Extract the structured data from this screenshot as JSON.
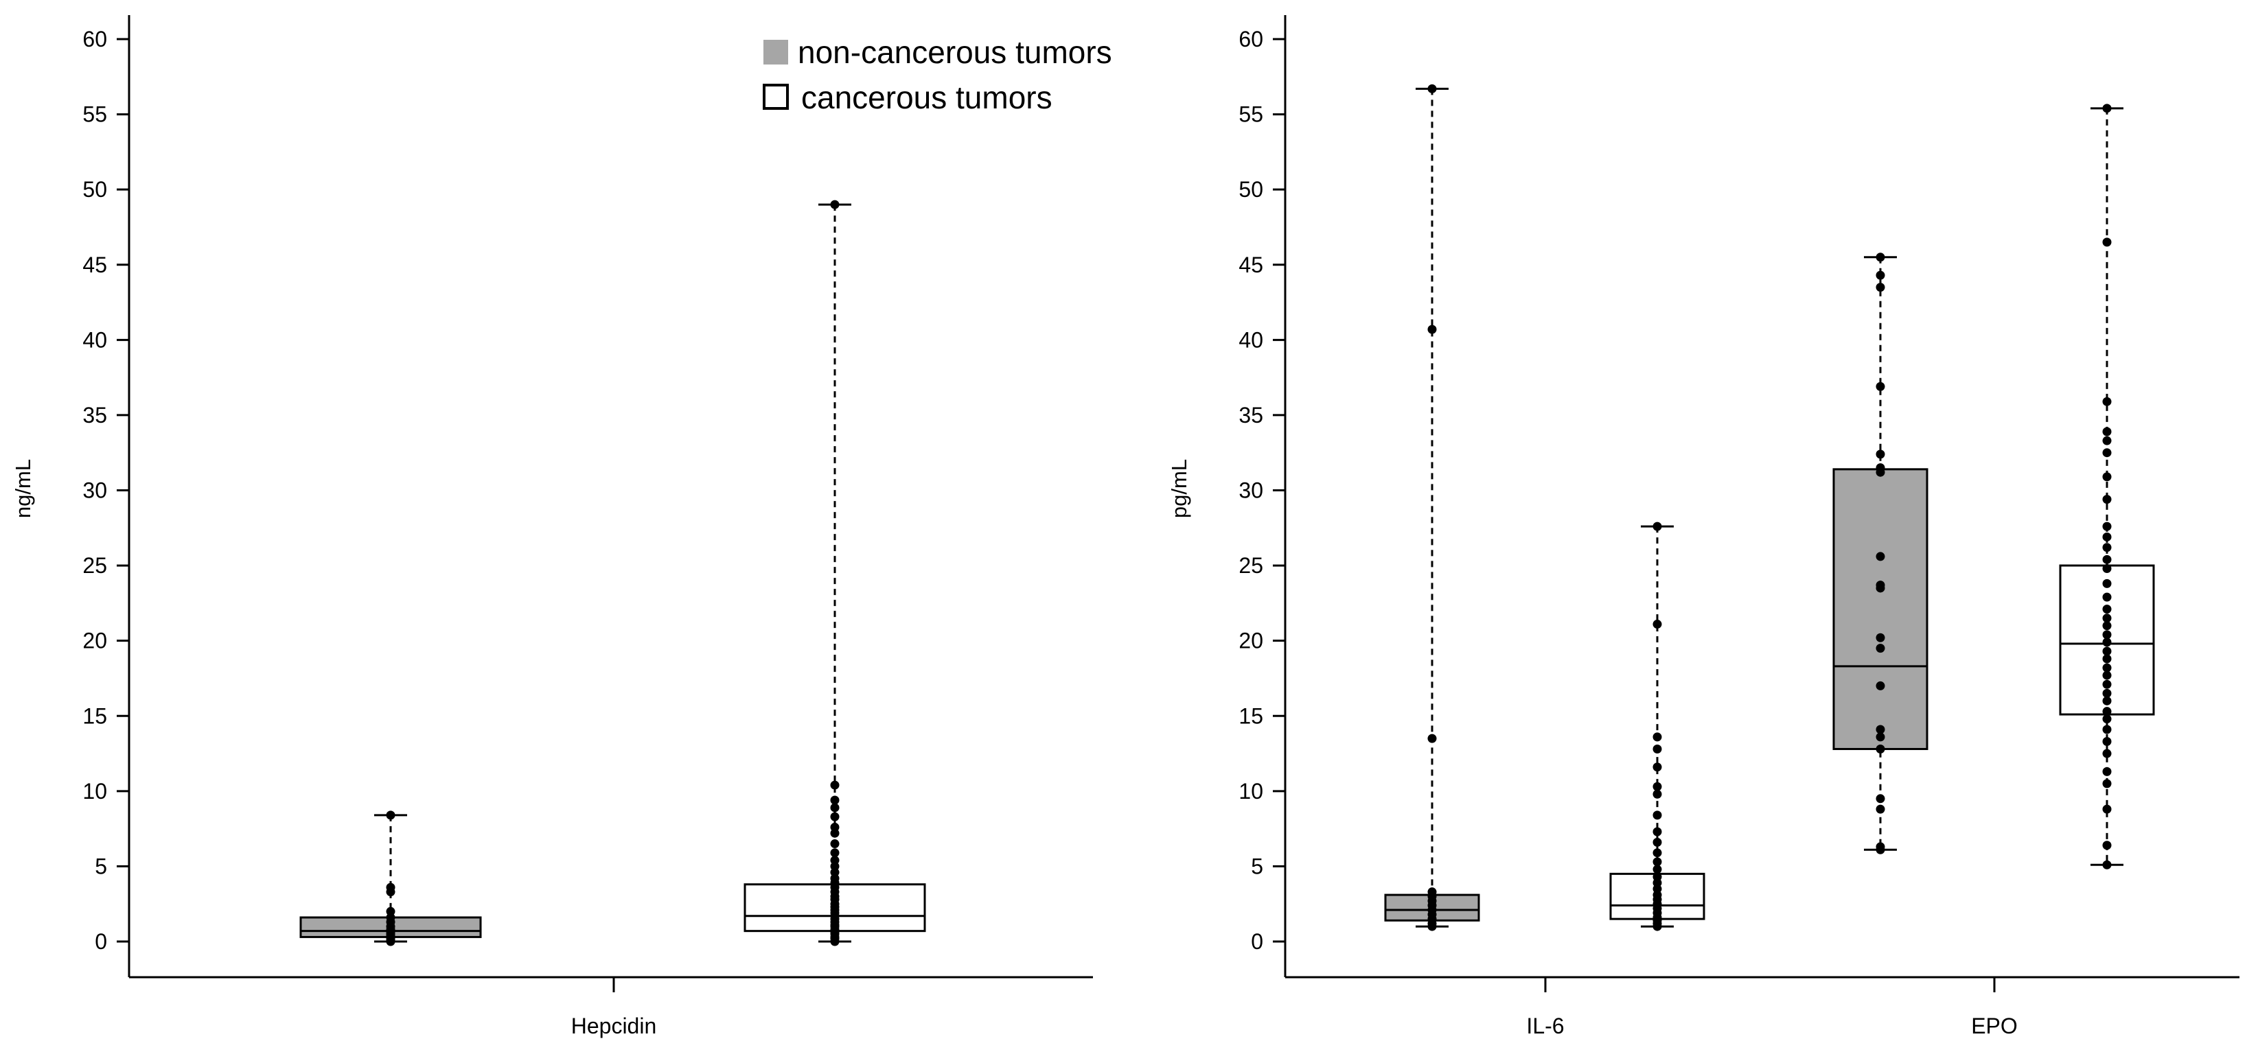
{
  "legend": {
    "items": [
      {
        "label": "non-cancerous tumors",
        "fill": "#a6a6a6"
      },
      {
        "label": "cancerous tumors",
        "fill": "#ffffff"
      }
    ],
    "position": "top-right of left panel"
  },
  "colors": {
    "non_cancerous_fill": "#a6a6a6",
    "cancerous_fill": "#ffffff",
    "stroke": "#000000"
  },
  "chart_data": [
    {
      "type": "box",
      "title": "",
      "ylabel": "ng/mL",
      "xlabel": "",
      "ylim": [
        -2.5,
        62
      ],
      "yticks": [
        0,
        5,
        10,
        15,
        20,
        25,
        30,
        35,
        40,
        45,
        50,
        55,
        60
      ],
      "grid": false,
      "categories": [
        "Hepcidin"
      ],
      "boxes": [
        {
          "category": "Hepcidin",
          "group": "non-cancerous tumors",
          "whisker_low": 0.0,
          "q1": 0.3,
          "median": 0.7,
          "q3": 1.6,
          "whisker_high": 8.4,
          "points": [
            0.0,
            0.1,
            0.2,
            0.3,
            0.4,
            0.5,
            0.6,
            0.7,
            0.8,
            1.0,
            1.3,
            1.6,
            2.0,
            3.3,
            3.6,
            8.4
          ]
        },
        {
          "category": "Hepcidin",
          "group": "cancerous tumors",
          "whisker_low": 0.0,
          "q1": 0.7,
          "median": 1.7,
          "q3": 3.8,
          "whisker_high": 49.0,
          "points": [
            0.0,
            0.2,
            0.3,
            0.5,
            0.6,
            0.8,
            1.0,
            1.1,
            1.3,
            1.5,
            1.7,
            1.9,
            2.1,
            2.3,
            2.5,
            2.8,
            3.0,
            3.3,
            3.6,
            3.9,
            4.2,
            4.6,
            5.0,
            5.4,
            5.9,
            6.5,
            7.2,
            7.6,
            8.3,
            8.9,
            9.4,
            10.4,
            49.0
          ]
        }
      ]
    },
    {
      "type": "box",
      "title": "",
      "ylabel": "pg/mL",
      "xlabel": "",
      "ylim": [
        -2.5,
        62
      ],
      "yticks": [
        0,
        5,
        10,
        15,
        20,
        25,
        30,
        35,
        40,
        45,
        50,
        55,
        60
      ],
      "grid": false,
      "categories": [
        "IL-6",
        "EPO"
      ],
      "boxes": [
        {
          "category": "IL-6",
          "group": "non-cancerous tumors",
          "whisker_low": 1.0,
          "q1": 1.4,
          "median": 2.1,
          "q3": 3.1,
          "whisker_high": 56.7,
          "points": [
            1.0,
            1.2,
            1.5,
            1.8,
            2.1,
            2.4,
            2.7,
            3.0,
            3.3,
            13.5,
            40.7,
            56.7
          ]
        },
        {
          "category": "IL-6",
          "group": "cancerous tumors",
          "whisker_low": 1.0,
          "q1": 1.5,
          "median": 2.4,
          "q3": 4.5,
          "whisker_high": 27.6,
          "points": [
            1.0,
            1.2,
            1.4,
            1.6,
            1.9,
            2.2,
            2.5,
            2.8,
            3.1,
            3.5,
            3.9,
            4.3,
            4.8,
            5.3,
            5.9,
            6.6,
            7.3,
            8.4,
            9.8,
            10.3,
            11.6,
            12.8,
            13.6,
            21.1,
            27.6
          ]
        },
        {
          "category": "EPO",
          "group": "non-cancerous tumors",
          "whisker_low": 6.1,
          "q1": 12.8,
          "median": 18.3,
          "q3": 31.4,
          "whisker_high": 45.5,
          "points": [
            6.1,
            6.3,
            8.8,
            9.5,
            12.8,
            13.6,
            14.1,
            17.0,
            19.5,
            20.2,
            23.5,
            23.7,
            25.6,
            31.2,
            31.5,
            32.4,
            36.9,
            43.5,
            44.3,
            45.5
          ]
        },
        {
          "category": "EPO",
          "group": "cancerous tumors",
          "whisker_low": 5.1,
          "q1": 15.1,
          "median": 19.8,
          "q3": 25.0,
          "whisker_high": 55.4,
          "points": [
            5.1,
            6.4,
            8.8,
            10.5,
            11.3,
            12.5,
            13.3,
            14.1,
            14.8,
            15.3,
            16.0,
            16.5,
            17.1,
            17.7,
            18.2,
            18.8,
            19.3,
            19.9,
            20.4,
            21.0,
            21.5,
            22.1,
            22.9,
            23.8,
            24.8,
            25.4,
            26.2,
            26.9,
            27.6,
            29.4,
            30.9,
            32.5,
            33.3,
            33.9,
            35.9,
            46.5,
            55.4
          ]
        }
      ]
    }
  ]
}
